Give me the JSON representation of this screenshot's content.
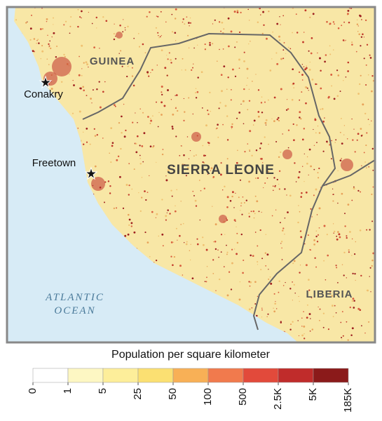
{
  "map": {
    "labels": {
      "guinea": "GUINEA",
      "conakry": "Conakry",
      "freetown": "Freetown",
      "sierra_leone": "SIERRA LEONE",
      "ocean_line1": "ATLANTIC",
      "ocean_line2": "OCEAN",
      "liberia": "LIBERIA"
    },
    "legend": {
      "title": "Population per square kilometer",
      "ticks": [
        0,
        1,
        5,
        25,
        50,
        100,
        500,
        {
          "value": 2500,
          "label": "2.5K"
        },
        {
          "value": 5000,
          "label": "5K"
        },
        {
          "value": 185000,
          "label": "185K"
        }
      ],
      "colors": [
        "#ffffff",
        "#fdf7c3",
        "#fdee9a",
        "#fbe072",
        "#f8b056",
        "#f17a4d",
        "#e24a3b",
        "#c02c2b",
        "#8b1a1a"
      ]
    }
  }
}
